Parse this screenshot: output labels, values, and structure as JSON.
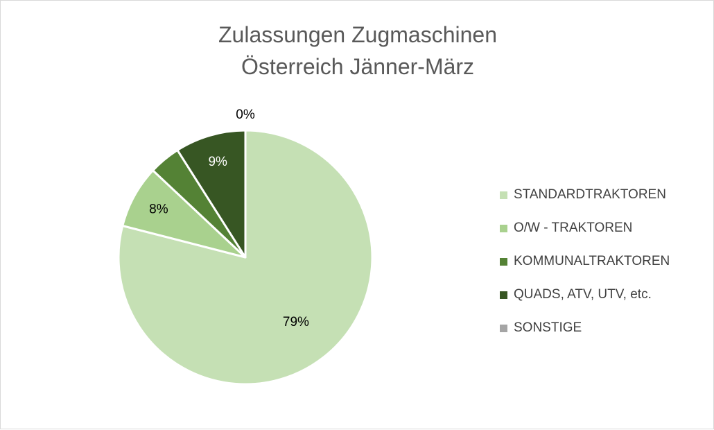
{
  "chart_data": {
    "type": "pie",
    "title_lines": [
      "Zulassungen Zugmaschinen",
      "Österreich Jänner-März"
    ],
    "categories": [
      "STANDARDTRAKTOREN",
      "O/W - TRAKTOREN",
      "KOMMUNALTRAKTOREN",
      "QUADS, ATV, UTV, etc.",
      "SONSTIGE"
    ],
    "values": [
      79,
      8,
      4,
      9,
      0
    ],
    "labels": [
      "79%",
      "8%",
      "",
      "9%",
      "0%"
    ],
    "colors": [
      "#c5e0b4",
      "#a9d18e",
      "#548235",
      "#375623",
      "#a5a5a5"
    ],
    "legend_position": "right"
  }
}
